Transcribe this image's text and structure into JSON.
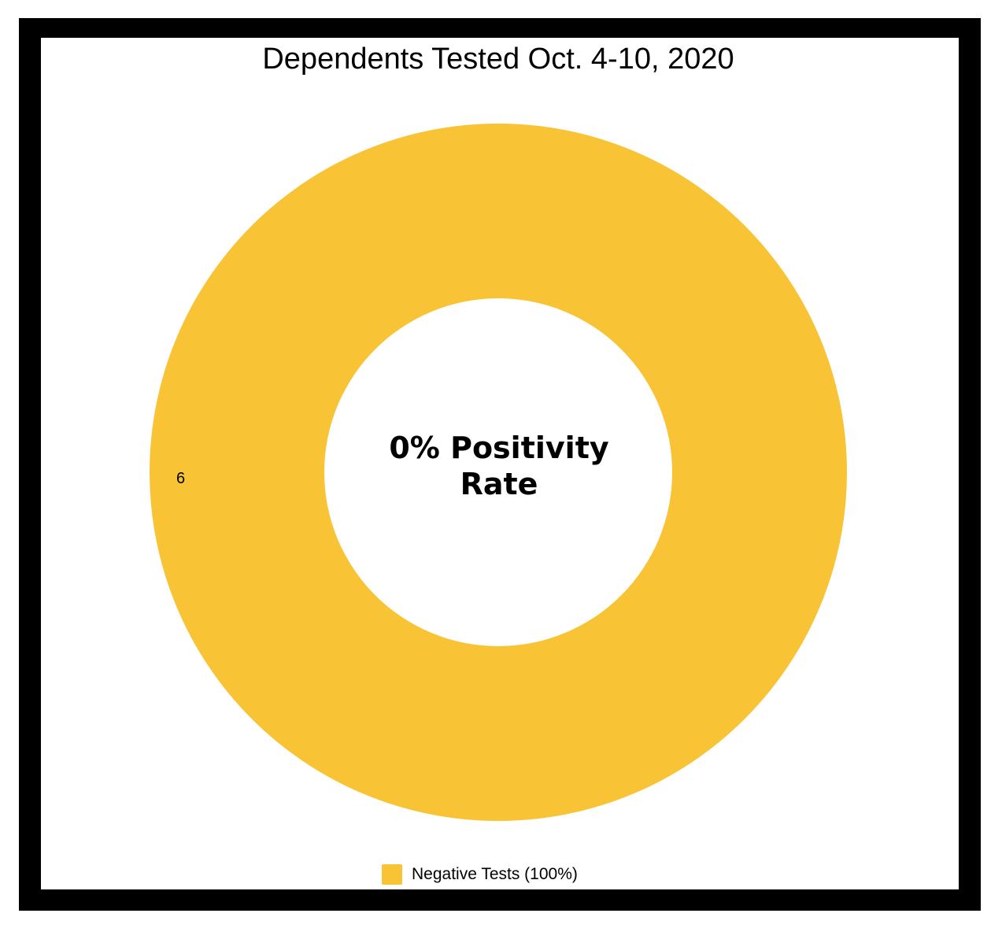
{
  "chart_data": {
    "type": "pie",
    "title": "Dependents Tested Oct. 4-10, 2020",
    "center_text": [
      "0% Positivity",
      "Rate"
    ],
    "labels": [
      "Negative Tests (100%)"
    ],
    "values": [
      6
    ],
    "data_labels": [
      "6"
    ],
    "colors": [
      "#F8C334"
    ],
    "donut": true,
    "legend_position": "bottom"
  }
}
